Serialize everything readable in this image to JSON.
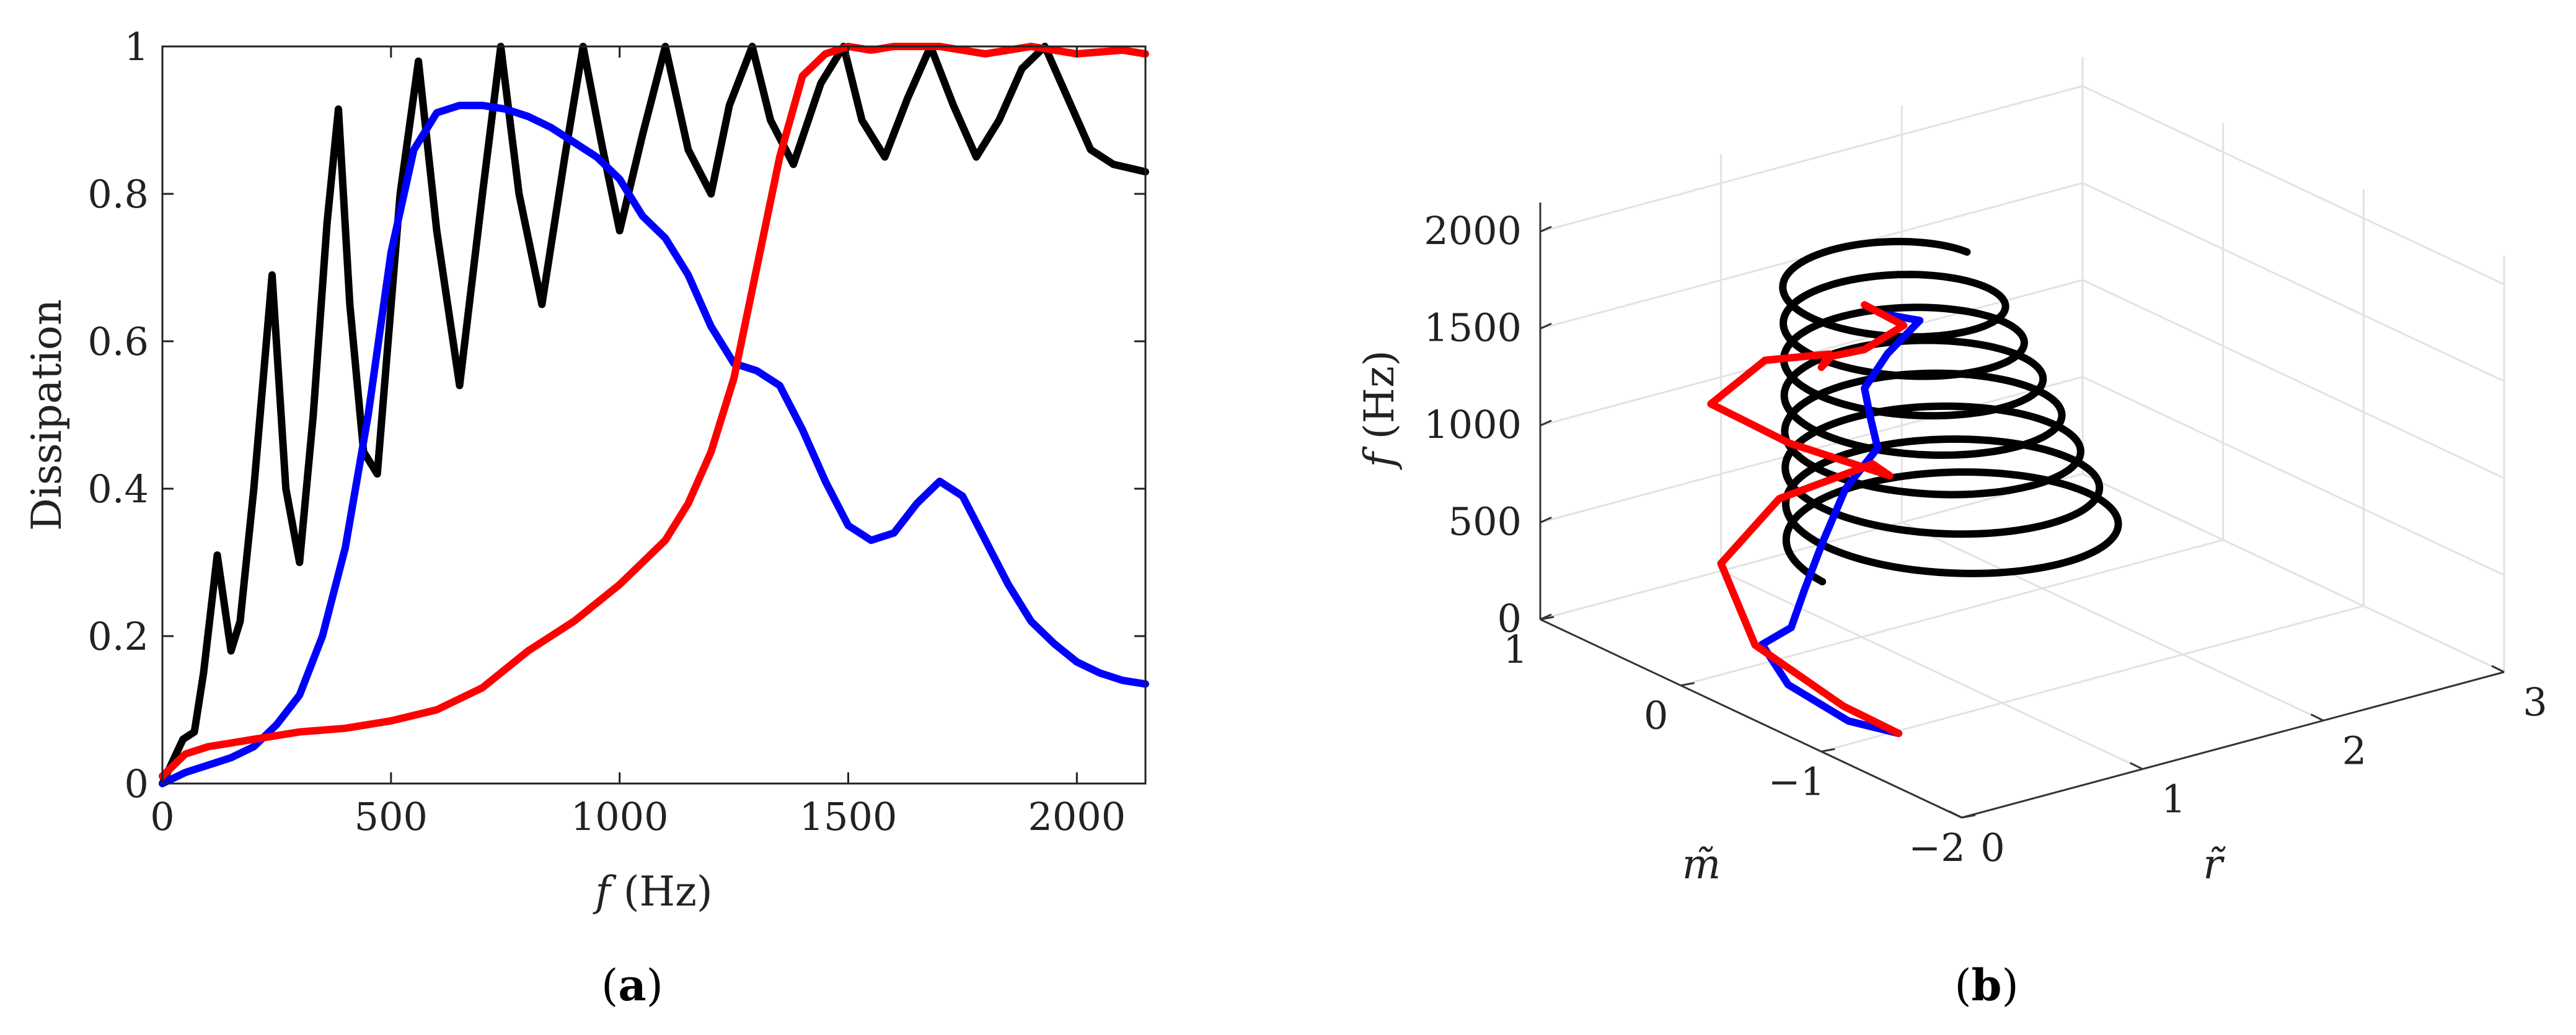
{
  "chart_data": [
    {
      "type": "line",
      "panel_label": "a",
      "xlabel_var": "f",
      "xlabel_unit": "(Hz)",
      "ylabel": "Dissipation",
      "xlim": [
        0,
        2150
      ],
      "ylim": [
        0,
        1
      ],
      "xticks": [
        "0",
        "500",
        "1000",
        "1500",
        "2000"
      ],
      "yticks": [
        "0",
        "0.2",
        "0.4",
        "0.6",
        "0.8",
        "1"
      ],
      "xtick_values": [
        0,
        500,
        1000,
        1500,
        2000
      ],
      "ytick_values": [
        0,
        0.2,
        0.4,
        0.6,
        0.8,
        1
      ],
      "grid": false,
      "series": [
        {
          "color": "#000000",
          "x": [
            0,
            30,
            45,
            70,
            90,
            120,
            150,
            170,
            200,
            240,
            270,
            300,
            330,
            360,
            385,
            410,
            440,
            470,
            520,
            560,
            600,
            650,
            700,
            740,
            780,
            830,
            880,
            920,
            960,
            1000,
            1050,
            1100,
            1150,
            1200,
            1240,
            1290,
            1330,
            1380,
            1440,
            1490,
            1530,
            1580,
            1630,
            1680,
            1730,
            1780,
            1830,
            1880,
            1930,
            1980,
            2030,
            2080,
            2150
          ],
          "y": [
            0,
            0.04,
            0.06,
            0.07,
            0.15,
            0.31,
            0.18,
            0.22,
            0.4,
            0.69,
            0.4,
            0.3,
            0.5,
            0.76,
            0.915,
            0.65,
            0.45,
            0.42,
            0.8,
            0.98,
            0.75,
            0.54,
            0.8,
            1.0,
            0.8,
            0.65,
            0.85,
            1.0,
            0.87,
            0.75,
            0.88,
            1.0,
            0.86,
            0.8,
            0.92,
            1.0,
            0.9,
            0.84,
            0.95,
            1.0,
            0.9,
            0.85,
            0.93,
            1.0,
            0.92,
            0.85,
            0.9,
            0.97,
            1.0,
            0.93,
            0.86,
            0.84,
            0.83
          ]
        },
        {
          "color": "#0000ff",
          "x": [
            0,
            50,
            100,
            150,
            200,
            250,
            300,
            350,
            400,
            450,
            500,
            550,
            600,
            650,
            700,
            750,
            800,
            850,
            900,
            950,
            1000,
            1050,
            1100,
            1150,
            1200,
            1250,
            1300,
            1350,
            1400,
            1450,
            1500,
            1550,
            1600,
            1650,
            1700,
            1750,
            1800,
            1850,
            1900,
            1950,
            2000,
            2050,
            2100,
            2150
          ],
          "y": [
            0,
            0.015,
            0.025,
            0.035,
            0.05,
            0.08,
            0.12,
            0.2,
            0.32,
            0.5,
            0.72,
            0.86,
            0.91,
            0.92,
            0.92,
            0.915,
            0.905,
            0.89,
            0.87,
            0.85,
            0.82,
            0.77,
            0.74,
            0.69,
            0.62,
            0.57,
            0.56,
            0.54,
            0.48,
            0.41,
            0.35,
            0.33,
            0.34,
            0.38,
            0.41,
            0.39,
            0.33,
            0.27,
            0.22,
            0.19,
            0.165,
            0.15,
            0.14,
            0.135
          ]
        },
        {
          "color": "#ff0000",
          "x": [
            0,
            50,
            100,
            200,
            300,
            400,
            500,
            600,
            700,
            800,
            900,
            1000,
            1050,
            1100,
            1150,
            1200,
            1250,
            1300,
            1350,
            1400,
            1450,
            1500,
            1550,
            1600,
            1700,
            1800,
            1900,
            2000,
            2100,
            2150
          ],
          "y": [
            0.01,
            0.04,
            0.05,
            0.06,
            0.07,
            0.075,
            0.085,
            0.1,
            0.13,
            0.18,
            0.22,
            0.27,
            0.3,
            0.33,
            0.38,
            0.45,
            0.55,
            0.7,
            0.85,
            0.96,
            0.99,
            1.0,
            0.995,
            1.0,
            1.0,
            0.99,
            1.0,
            0.99,
            0.995,
            0.99
          ]
        }
      ]
    },
    {
      "type": "line3d",
      "panel_label": "b",
      "zlabel_var": "f",
      "zlabel_unit": "(Hz)",
      "xlabel": "r̃",
      "ylabel": "m̃",
      "zlim": [
        0,
        2150
      ],
      "xlim": [
        0,
        3
      ],
      "ylim": [
        -2,
        1
      ],
      "zticks": [
        "0",
        "500",
        "1000",
        "1500",
        "2000"
      ],
      "xticks": [
        "0",
        "1",
        "2",
        "3"
      ],
      "yticks": [
        "−2",
        "−1",
        "0",
        "1"
      ],
      "grid": true,
      "series": [
        {
          "color": "#000000",
          "helix": {
            "r_start": 1.3,
            "r_end": 0.9,
            "radius_start": 0.75,
            "radius_end": 0.45,
            "m_center": -0.3,
            "turns": 7.5,
            "f_start": 500,
            "f_end": 2000
          }
        },
        {
          "color": "#0000ff",
          "points": [
            [
              0.35,
              -1.1,
              40
            ],
            [
              0.15,
              -1.0,
              120
            ],
            [
              0.05,
              -0.7,
              230
            ],
            [
              0.1,
              -0.45,
              340
            ],
            [
              0.3,
              -0.4,
              360
            ],
            [
              0.45,
              -0.3,
              480
            ],
            [
              0.55,
              -0.3,
              700
            ],
            [
              0.6,
              -0.4,
              1000
            ],
            [
              0.7,
              -0.5,
              1220
            ],
            [
              0.62,
              -0.55,
              1420
            ],
            [
              0.55,
              -0.6,
              1600
            ],
            [
              0.6,
              -0.7,
              1800
            ],
            [
              0.7,
              -0.8,
              1980
            ],
            [
              0.6,
              -0.7,
              2000
            ]
          ]
        },
        {
          "color": "#ff0000",
          "points": [
            [
              0.35,
              -1.1,
              40
            ],
            [
              0.2,
              -0.9,
              150
            ],
            [
              0.1,
              -0.4,
              320
            ],
            [
              0.3,
              0.1,
              520
            ],
            [
              0.7,
              0.2,
              720
            ],
            [
              1.1,
              0.05,
              850
            ],
            [
              1.0,
              -0.2,
              900
            ],
            [
              0.6,
              0.0,
              1100
            ],
            [
              0.4,
              0.3,
              1250
            ],
            [
              0.7,
              0.3,
              1400
            ],
            [
              0.9,
              0.1,
              1450
            ],
            [
              0.7,
              -0.1,
              1500
            ],
            [
              0.6,
              -0.3,
              1650
            ],
            [
              0.55,
              -0.6,
              1800
            ],
            [
              0.65,
              -0.75,
              1950
            ],
            [
              0.55,
              -0.6,
              2030
            ]
          ]
        }
      ]
    }
  ]
}
